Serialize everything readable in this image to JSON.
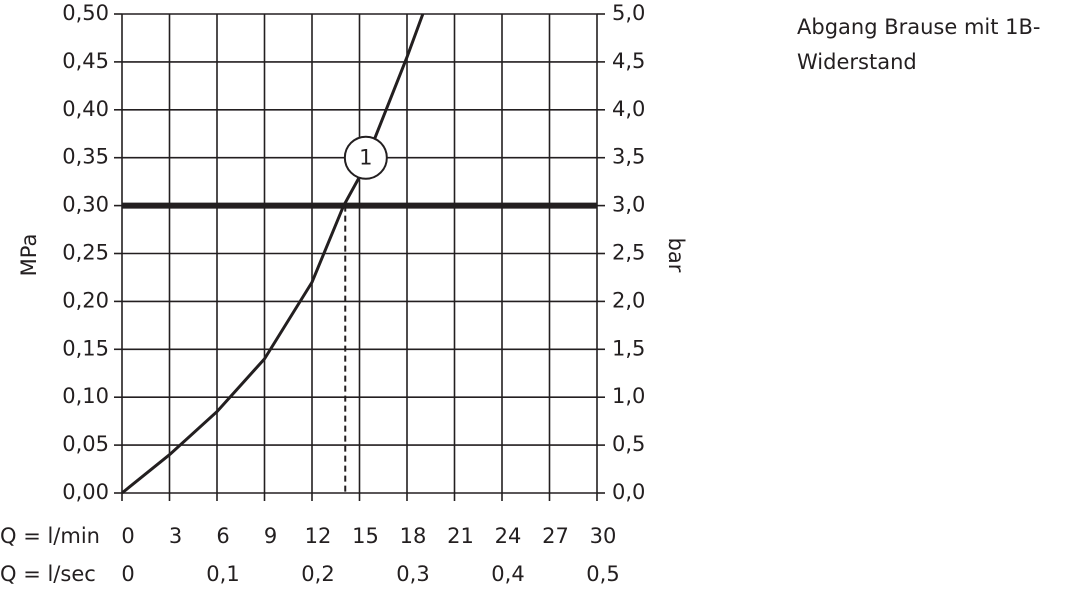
{
  "chart_data": {
    "type": "line",
    "title_lines": [
      "Abgang Brause mit 1B-",
      "Widerstand"
    ],
    "ylabel": "MPa",
    "y2label": "bar",
    "xlabel": "Q = l/min",
    "x2label": "Q = l/sec",
    "color": "#231f20",
    "x": [
      0,
      3,
      6,
      9,
      12,
      14,
      15,
      18,
      19
    ],
    "values": [
      0,
      0.04,
      0.085,
      0.14,
      0.22,
      0.3,
      0.33,
      0.455,
      0.5
    ],
    "xlim": [
      0,
      30
    ],
    "xticks": [
      0,
      3,
      6,
      9,
      12,
      15,
      18,
      21,
      24,
      27,
      30
    ],
    "x2lim": [
      0,
      0.5
    ],
    "x2ticks": [
      0,
      {
        "value": 0.1,
        "label": "0,1"
      },
      {
        "value": 0.2,
        "label": "0,2"
      },
      {
        "value": 0.3,
        "label": "0,3"
      },
      {
        "value": 0.4,
        "label": "0,4"
      },
      {
        "value": 0.5,
        "label": "0,5"
      }
    ],
    "ylim": [
      0,
      0.5
    ],
    "yticks": [
      {
        "value": 0,
        "label": "0,00"
      },
      {
        "value": 0.05,
        "label": "0,05"
      },
      {
        "value": 0.1,
        "label": "0,10"
      },
      {
        "value": 0.15,
        "label": "0,15"
      },
      {
        "value": 0.2,
        "label": "0,20"
      },
      {
        "value": 0.25,
        "label": "0,25"
      },
      {
        "value": 0.3,
        "label": "0,30"
      },
      {
        "value": 0.35,
        "label": "0,35"
      },
      {
        "value": 0.4,
        "label": "0,40"
      },
      {
        "value": 0.45,
        "label": "0,45"
      },
      {
        "value": 0.5,
        "label": "0,50"
      }
    ],
    "y2lim": [
      0,
      5
    ],
    "y2ticks": [
      {
        "value": 0,
        "label": "0,0"
      },
      {
        "value": 0.5,
        "label": "0,5"
      },
      {
        "value": 1,
        "label": "1,0"
      },
      {
        "value": 1.5,
        "label": "1,5"
      },
      {
        "value": 2,
        "label": "2,0"
      },
      {
        "value": 2.5,
        "label": "2,5"
      },
      {
        "value": 3,
        "label": "3,0"
      },
      {
        "value": 3.5,
        "label": "3,5"
      },
      {
        "value": 4,
        "label": "4,0"
      },
      {
        "value": 4.5,
        "label": "4,5"
      },
      {
        "value": 5,
        "label": "5,0"
      }
    ],
    "hline": 0.3,
    "vline": 14.1,
    "marker_label": {
      "text": "1",
      "x": 15.4,
      "y": 0.35
    },
    "grid": true
  }
}
